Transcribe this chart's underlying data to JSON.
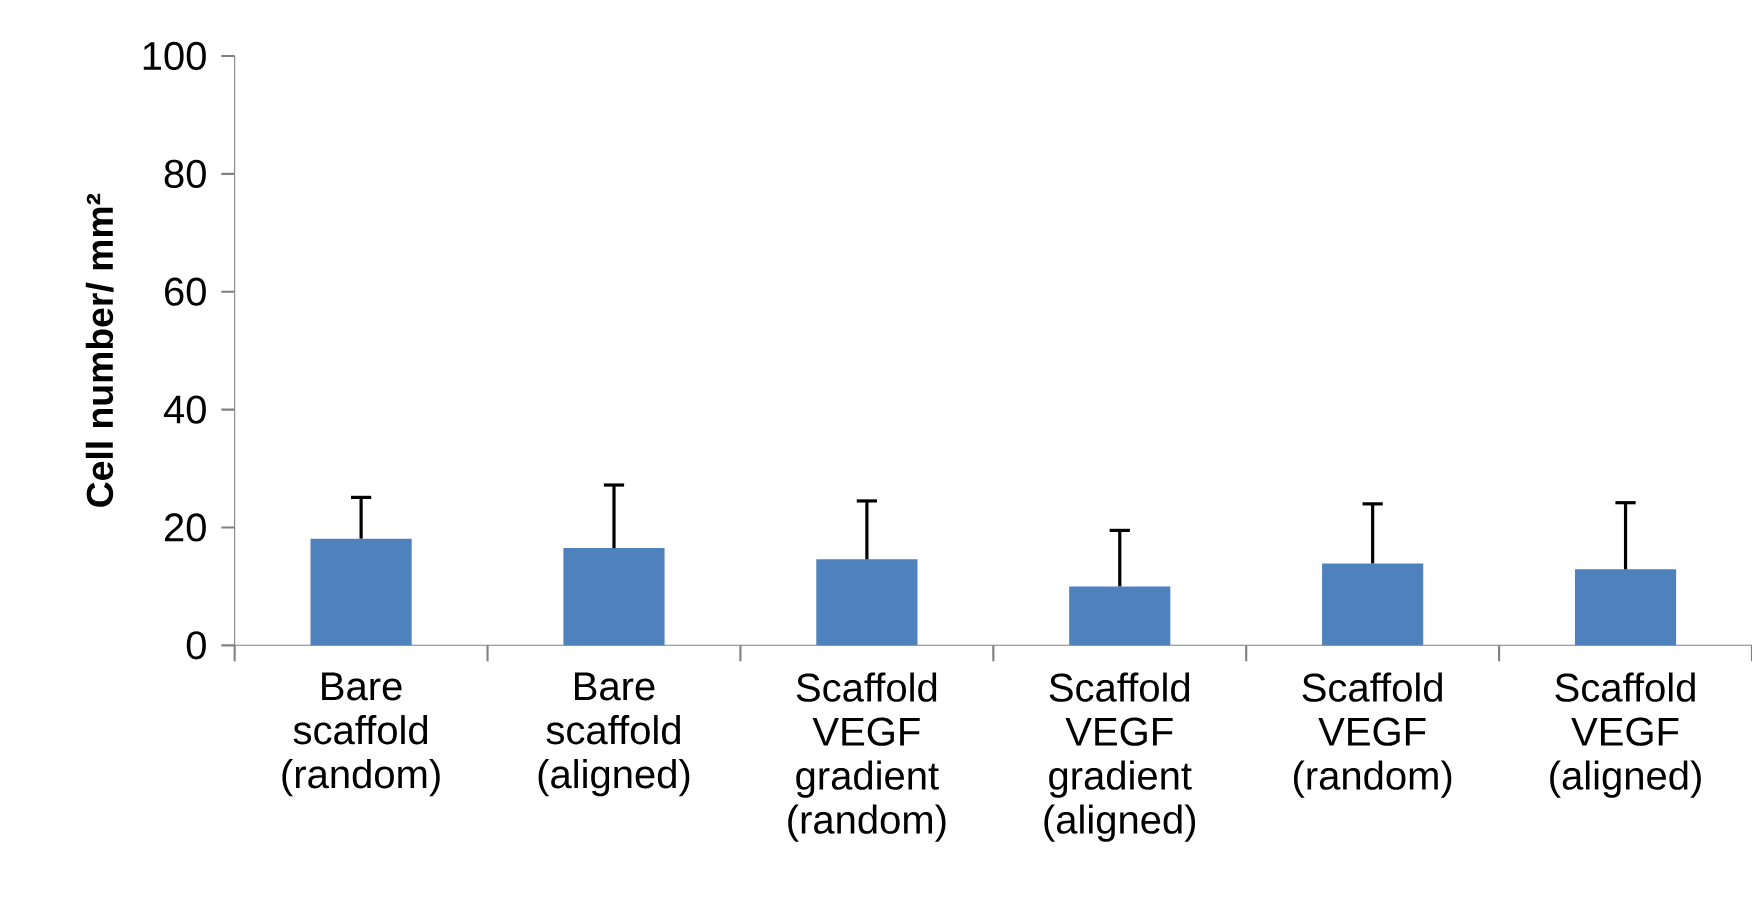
{
  "chart_data": {
    "type": "bar",
    "ylabel": "Cell number/ mm²",
    "categories": [
      "Bare scaffold (random)",
      "Bare scaffold (aligned)",
      "Scaffold VEGF gradient (random)",
      "Scaffold VEGF gradient (aligned)",
      "Scaffold VEGF (random)",
      "Scaffold VEGF (aligned)"
    ],
    "values": [
      18.1,
      16.5,
      14.6,
      10.0,
      13.9,
      12.9
    ],
    "errors": [
      [
        18.1,
        25.1
      ],
      [
        16.5,
        27.2
      ],
      [
        14.6,
        24.5
      ],
      [
        10.0,
        19.5
      ],
      [
        13.9,
        24.0
      ],
      [
        12.9,
        24.2
      ]
    ],
    "color": "#4f81bd",
    "ylim": [
      0,
      100
    ],
    "yticks": [
      0,
      20,
      40,
      60,
      80,
      100
    ]
  }
}
